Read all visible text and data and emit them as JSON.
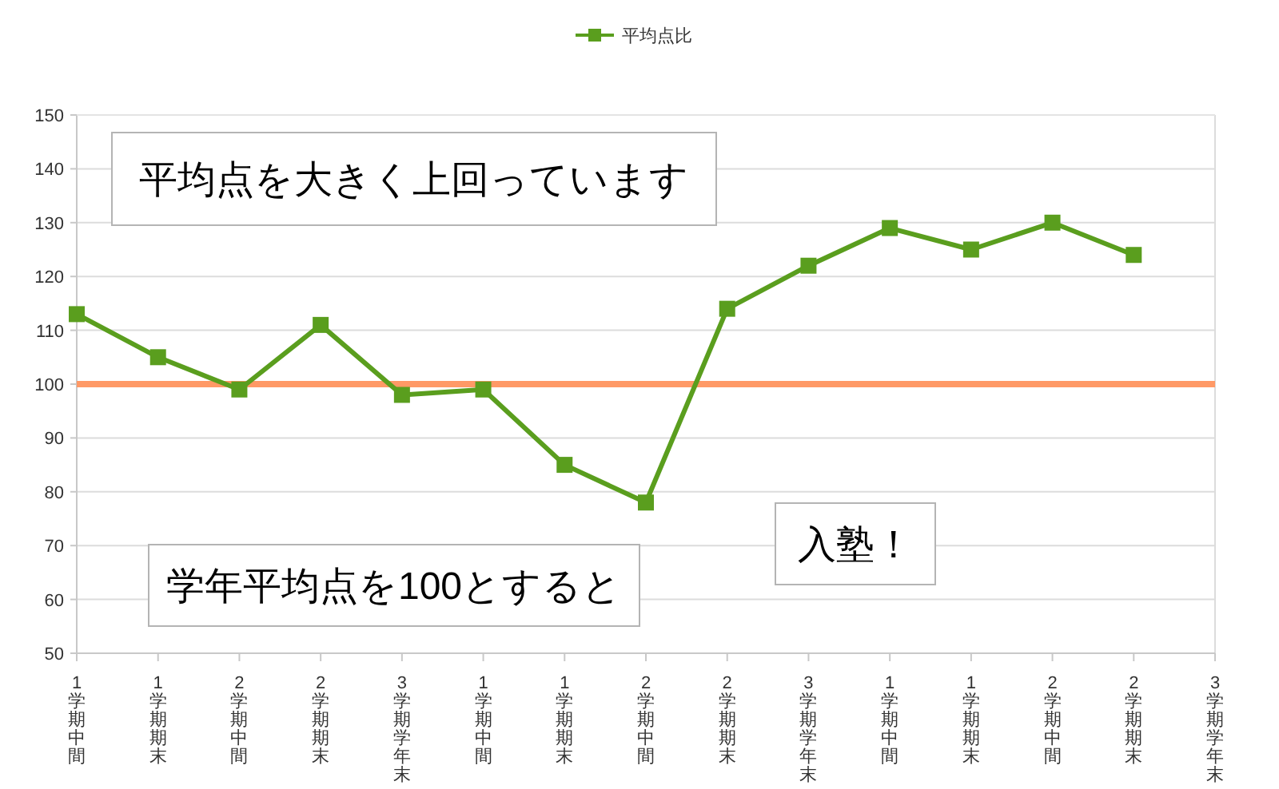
{
  "chart_data": {
    "type": "line",
    "categories": [
      "1学期中間",
      "1学期期末",
      "2学期中間",
      "2学期期末",
      "3学期学年末",
      "1学期中間",
      "1学期期末",
      "2学期中間",
      "2学期期末",
      "3学期学年末",
      "1学期中間",
      "1学期期末",
      "2学期中間",
      "2学期期末",
      "3学期学年末"
    ],
    "series": [
      {
        "name": "平均点比",
        "color": "#5a9e1e",
        "values": [
          113,
          105,
          99,
          111,
          98,
          99,
          85,
          78,
          114,
          122,
          129,
          125,
          130,
          124,
          null
        ]
      }
    ],
    "ylim": [
      50,
      150
    ],
    "yticks": [
      50,
      60,
      70,
      80,
      90,
      100,
      110,
      120,
      130,
      140,
      150
    ],
    "grid": "y",
    "legend": "top",
    "marker": "square",
    "line_style": "solid",
    "ref_lines": [
      {
        "axis": "y",
        "value": 100,
        "color": "#ff9966"
      }
    ],
    "annotations": [
      "平均点を大きく上回っています",
      "学年平均点を100とすると",
      "入塾！"
    ]
  }
}
